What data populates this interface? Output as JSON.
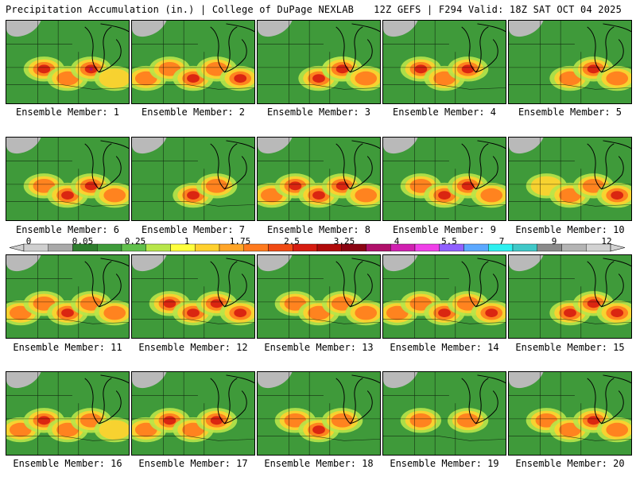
{
  "header": {
    "title_left": "Precipitation Accumulation (in.) | College of DuPage NEXLAB",
    "title_right": "12Z GEFS | F294 Valid: 18Z SAT OCT 04 2025"
  },
  "colorbar": {
    "labels": [
      "0",
      "0.05",
      "0.25",
      "1",
      "1.75",
      "2.5",
      "3.25",
      "4",
      "5.5",
      "7",
      "9",
      "12"
    ],
    "colors": [
      "#cfcfcf",
      "#a9a9a9",
      "#2d7d2d",
      "#3e9b3b",
      "#61c04b",
      "#b8e64a",
      "#ffff3c",
      "#ffd02e",
      "#ffa528",
      "#ff7a1e",
      "#f04a14",
      "#d61c10",
      "#b00a0a",
      "#8a0412",
      "#b0106a",
      "#d020b0",
      "#f040e8",
      "#9060ff",
      "#5ca8ff",
      "#2ef0f0",
      "#40c8c8",
      "#8a8a8a",
      "#b4b4b4",
      "#d2d2d2"
    ]
  },
  "panels": [
    {
      "label": "Ensemble Member: 1",
      "hot": [
        [
          1,
          3
        ],
        [
          2,
          2
        ],
        [
          3,
          4
        ],
        [
          4,
          1
        ]
      ]
    },
    {
      "label": "Ensemble Member: 2",
      "hot": [
        [
          0,
          2
        ],
        [
          1,
          2
        ],
        [
          2,
          3
        ],
        [
          3,
          2
        ],
        [
          4,
          3
        ]
      ]
    },
    {
      "label": "Ensemble Member: 3",
      "hot": [
        [
          2,
          3
        ],
        [
          3,
          2
        ],
        [
          3,
          3
        ],
        [
          4,
          2
        ]
      ]
    },
    {
      "label": "Ensemble Member: 4",
      "hot": [
        [
          1,
          3
        ],
        [
          2,
          2
        ],
        [
          3,
          3
        ]
      ]
    },
    {
      "label": "Ensemble Member: 5",
      "hot": [
        [
          2,
          2
        ],
        [
          3,
          3
        ],
        [
          4,
          2
        ]
      ]
    },
    {
      "label": "Ensemble Member: 6",
      "hot": [
        [
          1,
          2
        ],
        [
          2,
          3
        ],
        [
          3,
          3
        ],
        [
          4,
          2
        ]
      ]
    },
    {
      "label": "Ensemble Member: 7",
      "hot": [
        [
          2,
          3
        ],
        [
          3,
          2
        ]
      ]
    },
    {
      "label": "Ensemble Member: 8",
      "hot": [
        [
          0,
          2
        ],
        [
          1,
          3
        ],
        [
          2,
          3
        ],
        [
          3,
          3
        ],
        [
          4,
          2
        ]
      ]
    },
    {
      "label": "Ensemble Member: 9",
      "hot": [
        [
          1,
          2
        ],
        [
          2,
          3
        ],
        [
          3,
          3
        ],
        [
          4,
          2
        ]
      ]
    },
    {
      "label": "Ensemble Member: 10",
      "hot": [
        [
          1,
          1
        ],
        [
          2,
          2
        ],
        [
          3,
          2
        ],
        [
          4,
          3
        ]
      ]
    },
    {
      "label": "Ensemble Member: 11",
      "hot": [
        [
          0,
          2
        ],
        [
          1,
          2
        ],
        [
          2,
          3
        ],
        [
          3,
          2
        ],
        [
          4,
          2
        ]
      ]
    },
    {
      "label": "Ensemble Member: 12",
      "hot": [
        [
          1,
          3
        ],
        [
          2,
          3
        ],
        [
          3,
          3
        ],
        [
          4,
          3
        ]
      ]
    },
    {
      "label": "Ensemble Member: 13",
      "hot": [
        [
          1,
          2
        ],
        [
          2,
          2
        ],
        [
          3,
          2
        ],
        [
          4,
          2
        ]
      ]
    },
    {
      "label": "Ensemble Member: 14",
      "hot": [
        [
          0,
          2
        ],
        [
          1,
          2
        ],
        [
          2,
          3
        ],
        [
          3,
          2
        ],
        [
          4,
          3
        ]
      ]
    },
    {
      "label": "Ensemble Member: 15",
      "hot": [
        [
          2,
          3
        ],
        [
          3,
          3
        ],
        [
          4,
          3
        ]
      ]
    },
    {
      "label": "Ensemble Member: 16",
      "hot": [
        [
          0,
          2
        ],
        [
          1,
          3
        ],
        [
          2,
          2
        ],
        [
          3,
          2
        ],
        [
          4,
          1
        ]
      ]
    },
    {
      "label": "Ensemble Member: 17",
      "hot": [
        [
          0,
          2
        ],
        [
          1,
          3
        ],
        [
          2,
          2
        ],
        [
          3,
          3
        ]
      ]
    },
    {
      "label": "Ensemble Member: 18",
      "hot": [
        [
          1,
          2
        ],
        [
          2,
          3
        ],
        [
          3,
          2
        ]
      ]
    },
    {
      "label": "Ensemble Member: 19",
      "hot": [
        [
          1,
          2
        ],
        [
          3,
          2
        ]
      ]
    },
    {
      "label": "Ensemble Member: 20",
      "hot": [
        [
          1,
          2
        ],
        [
          2,
          2
        ],
        [
          3,
          3
        ],
        [
          4,
          2
        ]
      ]
    }
  ]
}
